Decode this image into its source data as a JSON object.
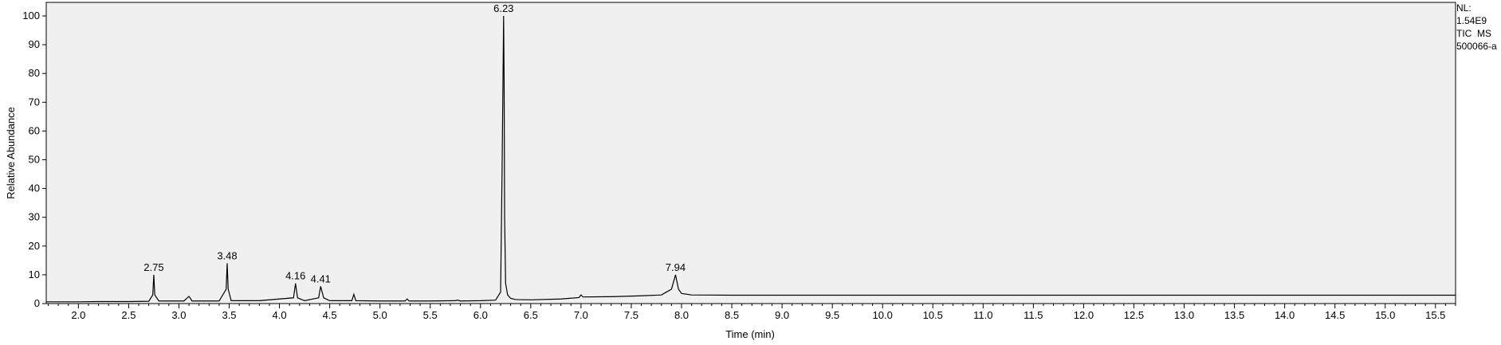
{
  "info": {
    "nl_label": "NL:",
    "nl_value": "1.54E9",
    "scan_type": "TIC  MS",
    "file_name": "500066-a"
  },
  "chart_data": {
    "type": "line",
    "title": "",
    "xlabel": "Time (min)",
    "ylabel": "Relative Abundance",
    "xlim": [
      1.68,
      15.7
    ],
    "ylim": [
      0,
      100
    ],
    "x_ticks": [
      2.0,
      2.5,
      3.0,
      3.5,
      4.0,
      4.5,
      5.0,
      5.5,
      6.0,
      6.5,
      7.0,
      7.5,
      8.0,
      8.5,
      9.0,
      9.5,
      10.0,
      10.5,
      11.0,
      11.5,
      12.0,
      12.5,
      13.0,
      13.5,
      14.0,
      14.5,
      15.0,
      15.5
    ],
    "x_tick_labels": [
      "2.0",
      "2.5",
      "3.0",
      "3.5",
      "4.0",
      "4.5",
      "5.0",
      "5.5",
      "6.0",
      "6.5",
      "7.0",
      "7.5",
      "8.0",
      "8.5",
      "9.0",
      "9.5",
      "10.0",
      "10.5",
      "11.0",
      "11.5",
      "12.0",
      "12.5",
      "13.0",
      "13.5",
      "14.0",
      "14.5",
      "15.0",
      "15.5"
    ],
    "y_ticks": [
      0,
      10,
      20,
      30,
      40,
      50,
      60,
      70,
      80,
      90,
      100
    ],
    "y_tick_labels": [
      "0",
      "10",
      "20",
      "30",
      "40",
      "50",
      "60",
      "70",
      "80",
      "90",
      "100"
    ],
    "grid": false,
    "line_color": "#000000",
    "plot_background": "#f0f0f0",
    "series": [
      {
        "x": [
          1.68,
          2.0,
          2.2,
          2.5,
          2.7,
          2.74,
          2.75,
          2.76,
          2.8,
          3.05,
          3.1,
          3.11,
          3.13,
          3.4,
          3.47,
          3.48,
          3.49,
          3.52,
          3.8,
          4.14,
          4.16,
          4.18,
          4.25,
          4.39,
          4.41,
          4.44,
          4.5,
          4.72,
          4.74,
          4.76,
          5.0,
          5.25,
          5.27,
          5.29,
          5.5,
          5.75,
          5.77,
          5.8,
          6.0,
          6.15,
          6.2,
          6.215,
          6.225,
          6.23,
          6.235,
          6.24,
          6.25,
          6.27,
          6.3,
          6.35,
          6.5,
          6.8,
          6.98,
          7.0,
          7.02,
          7.3,
          7.6,
          7.8,
          7.9,
          7.94,
          7.97,
          8.0,
          8.1,
          8.5,
          9.0,
          10.0,
          12.0,
          15.7
        ],
        "y": [
          0.6,
          0.6,
          0.7,
          0.7,
          0.8,
          3.0,
          10.0,
          3.0,
          0.9,
          0.9,
          2.5,
          2.0,
          0.9,
          0.9,
          5.0,
          14.0,
          5.0,
          1.0,
          1.0,
          2.0,
          7.0,
          2.0,
          1.0,
          2.0,
          6.0,
          2.0,
          1.0,
          1.0,
          3.2,
          1.0,
          0.9,
          0.9,
          1.6,
          0.9,
          0.9,
          1.0,
          1.2,
          0.9,
          1.0,
          1.2,
          4.0,
          47.0,
          82.0,
          100.0,
          78.0,
          30.0,
          7.0,
          3.0,
          1.8,
          1.4,
          1.3,
          1.6,
          2.1,
          3.0,
          2.3,
          2.4,
          2.7,
          3.0,
          5.0,
          10.0,
          5.0,
          3.5,
          3.0,
          2.9,
          2.9,
          2.9,
          2.9,
          2.9
        ]
      }
    ],
    "peak_labels": [
      {
        "x": 2.75,
        "y": 10.0,
        "label": "2.75"
      },
      {
        "x": 3.48,
        "y": 14.0,
        "label": "3.48"
      },
      {
        "x": 4.16,
        "y": 7.0,
        "label": "4.16"
      },
      {
        "x": 4.41,
        "y": 6.0,
        "label": "4.41"
      },
      {
        "x": 6.23,
        "y": 100.0,
        "label": "6.23"
      },
      {
        "x": 7.94,
        "y": 10.0,
        "label": "7.94"
      }
    ]
  }
}
